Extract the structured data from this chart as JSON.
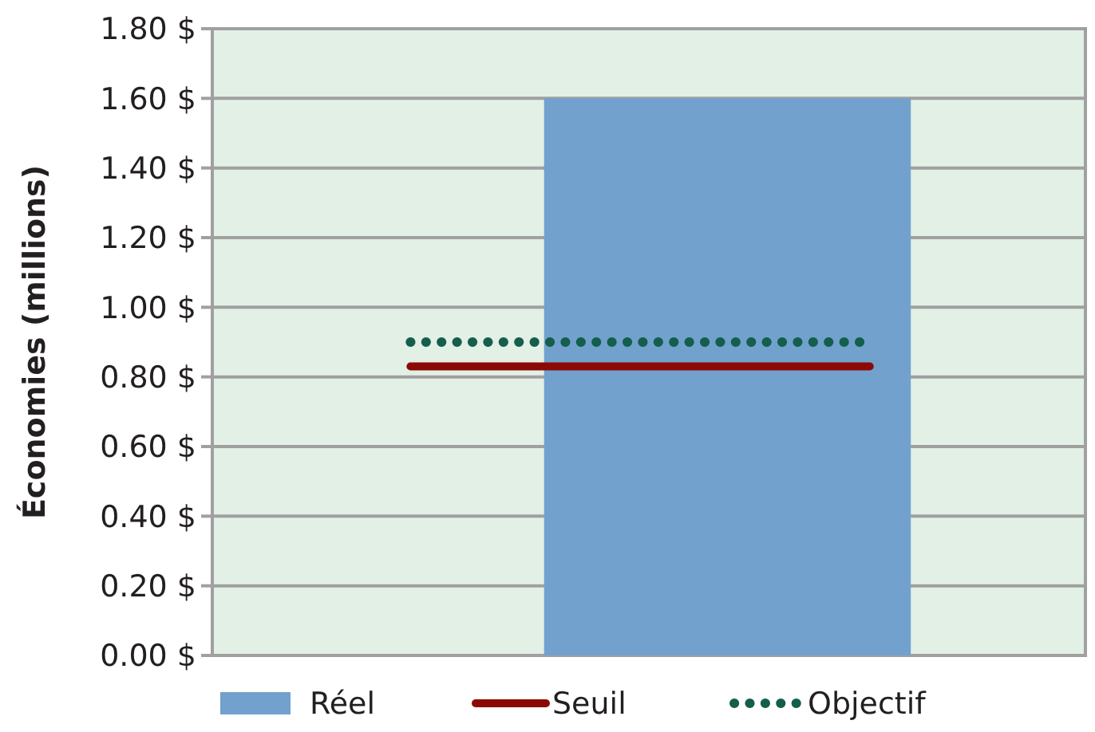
{
  "chart_data": {
    "type": "bar",
    "ylabel": "Économies (millions)",
    "categories": [
      null
    ],
    "series": [
      {
        "name": "Réel",
        "color": "#72a1cd",
        "values": [
          1.6
        ]
      }
    ],
    "ref_lines": [
      {
        "axis": "y",
        "value": 0.83,
        "label": "Seuil",
        "color": "#8b0a05",
        "line_style": "solid"
      },
      {
        "axis": "y",
        "value": 0.9,
        "label": "Objectif",
        "color": "#145e4c",
        "line_style": "dotted"
      }
    ],
    "ylim": [
      0,
      1.8
    ],
    "yticks": [
      {
        "value": 0,
        "label": "0.00 $"
      },
      {
        "value": 0.2,
        "label": "0.20 $"
      },
      {
        "value": 0.4,
        "label": "0.40 $"
      },
      {
        "value": 0.6,
        "label": "0.60 $"
      },
      {
        "value": 0.8,
        "label": "0.80 $"
      },
      {
        "value": 1,
        "label": "1.00 $"
      },
      {
        "value": 1.2,
        "label": "1.20 $"
      },
      {
        "value": 1.4,
        "label": "1.40 $"
      },
      {
        "value": 1.6,
        "label": "1.60 $"
      },
      {
        "value": 1.8,
        "label": "1.80 $"
      }
    ],
    "grid": "y",
    "legend": "bottom"
  }
}
